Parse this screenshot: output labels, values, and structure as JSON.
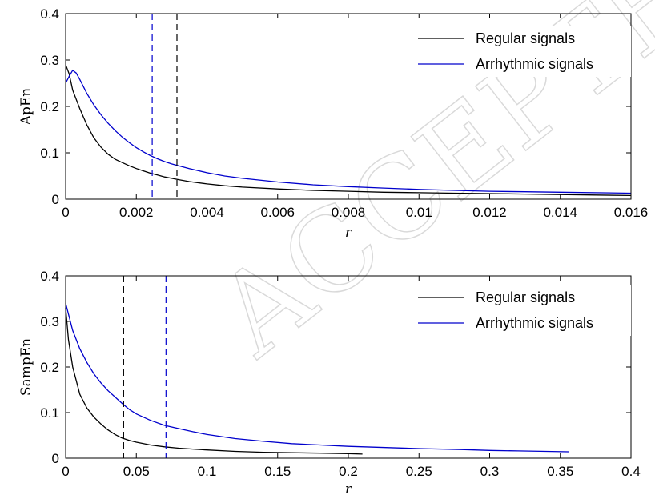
{
  "watermark": "ACCEPTED",
  "chart_data": [
    {
      "type": "line",
      "ylabel": "ApEn",
      "xlabel": "r",
      "xlim": [
        0,
        0.016
      ],
      "ylim": [
        0,
        0.4
      ],
      "xticks": [
        0,
        0.002,
        0.004,
        0.006,
        0.008,
        0.01,
        0.012,
        0.014,
        0.016
      ],
      "xtick_labels": [
        "0",
        "0.002",
        "0.004",
        "0.006",
        "0.008",
        "0.01",
        "0.012",
        "0.014",
        "0.016"
      ],
      "yticks": [
        0,
        0.1,
        0.2,
        0.3,
        0.4
      ],
      "ytick_labels": [
        "0",
        "0.1",
        "0.2",
        "0.3",
        "0.4"
      ],
      "legend_position": "top-right",
      "series": [
        {
          "name": "Regular signals",
          "color": "#000000",
          "x": [
            0,
            0.0001,
            0.0002,
            0.0004,
            0.0006,
            0.0008,
            0.001,
            0.0012,
            0.0014,
            0.0016,
            0.0018,
            0.002,
            0.0022,
            0.0024,
            0.0026,
            0.0028,
            0.003,
            0.0032,
            0.0035,
            0.004,
            0.0045,
            0.005,
            0.006,
            0.007,
            0.008,
            0.009,
            0.01,
            0.011,
            0.012,
            0.013,
            0.014,
            0.015,
            0.016
          ],
          "y": [
            0.29,
            0.27,
            0.235,
            0.195,
            0.16,
            0.132,
            0.112,
            0.097,
            0.086,
            0.079,
            0.072,
            0.066,
            0.061,
            0.056,
            0.052,
            0.048,
            0.045,
            0.042,
            0.038,
            0.033,
            0.029,
            0.026,
            0.022,
            0.019,
            0.017,
            0.015,
            0.014,
            0.013,
            0.012,
            0.011,
            0.01,
            0.009,
            0.008
          ]
        },
        {
          "name": "Arrhythmic signals",
          "color": "#0000cc",
          "x": [
            0,
            0.0001,
            0.0002,
            0.0003,
            0.0004,
            0.0006,
            0.0008,
            0.001,
            0.0012,
            0.0014,
            0.0016,
            0.0018,
            0.002,
            0.0022,
            0.0024,
            0.0026,
            0.0028,
            0.003,
            0.0032,
            0.0035,
            0.004,
            0.0045,
            0.005,
            0.006,
            0.007,
            0.008,
            0.009,
            0.01,
            0.011,
            0.012,
            0.013,
            0.014,
            0.015,
            0.016
          ],
          "y": [
            0.25,
            0.265,
            0.278,
            0.272,
            0.258,
            0.228,
            0.203,
            0.182,
            0.164,
            0.148,
            0.134,
            0.122,
            0.111,
            0.102,
            0.094,
            0.087,
            0.081,
            0.076,
            0.072,
            0.066,
            0.057,
            0.05,
            0.045,
            0.037,
            0.031,
            0.027,
            0.024,
            0.021,
            0.019,
            0.017,
            0.016,
            0.015,
            0.014,
            0.013
          ]
        }
      ],
      "vertical_lines": [
        {
          "x": 0.00245,
          "color": "#0000cc",
          "style": "dashed"
        },
        {
          "x": 0.00315,
          "color": "#000000",
          "style": "dashed"
        }
      ]
    },
    {
      "type": "line",
      "ylabel": "SampEn",
      "xlabel": "r",
      "xlim": [
        0,
        0.4
      ],
      "ylim": [
        0,
        0.4
      ],
      "xticks": [
        0,
        0.05,
        0.1,
        0.15,
        0.2,
        0.25,
        0.3,
        0.35,
        0.4
      ],
      "xtick_labels": [
        "0",
        "0.05",
        "0.1",
        "0.15",
        "0.2",
        "0.25",
        "0.3",
        "0.35",
        "0.4"
      ],
      "yticks": [
        0,
        0.1,
        0.2,
        0.3,
        0.4
      ],
      "ytick_labels": [
        "0",
        "0.1",
        "0.2",
        "0.3",
        "0.4"
      ],
      "legend_position": "top-right",
      "series": [
        {
          "name": "Regular signals",
          "color": "#000000",
          "x": [
            0,
            0.002,
            0.005,
            0.01,
            0.015,
            0.02,
            0.025,
            0.03,
            0.035,
            0.04,
            0.045,
            0.05,
            0.06,
            0.07,
            0.08,
            0.09,
            0.1,
            0.12,
            0.14,
            0.16,
            0.18,
            0.2,
            0.21
          ],
          "y": [
            0.33,
            0.26,
            0.2,
            0.14,
            0.11,
            0.09,
            0.075,
            0.062,
            0.052,
            0.044,
            0.039,
            0.035,
            0.029,
            0.025,
            0.022,
            0.02,
            0.018,
            0.015,
            0.013,
            0.012,
            0.011,
            0.01,
            0.009
          ]
        },
        {
          "name": "Arrhythmic signals",
          "color": "#0000cc",
          "x": [
            0,
            0.005,
            0.01,
            0.015,
            0.02,
            0.025,
            0.03,
            0.035,
            0.04,
            0.045,
            0.05,
            0.06,
            0.07,
            0.08,
            0.09,
            0.1,
            0.12,
            0.14,
            0.16,
            0.18,
            0.2,
            0.22,
            0.25,
            0.28,
            0.3,
            0.32,
            0.34,
            0.356
          ],
          "y": [
            0.34,
            0.28,
            0.24,
            0.21,
            0.185,
            0.165,
            0.148,
            0.134,
            0.12,
            0.107,
            0.097,
            0.083,
            0.072,
            0.065,
            0.058,
            0.052,
            0.043,
            0.037,
            0.032,
            0.029,
            0.026,
            0.024,
            0.021,
            0.019,
            0.017,
            0.016,
            0.015,
            0.014
          ]
        }
      ],
      "vertical_lines": [
        {
          "x": 0.041,
          "color": "#000000",
          "style": "dashed"
        },
        {
          "x": 0.071,
          "color": "#0000cc",
          "style": "dashed"
        }
      ]
    }
  ]
}
